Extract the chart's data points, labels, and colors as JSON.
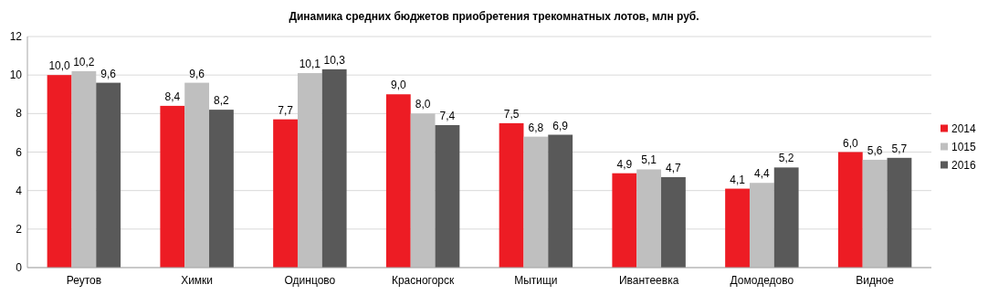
{
  "chart_data": {
    "type": "bar",
    "title": "Динамика средних бюджетов приобретения трекомнатных лотов, млн руб.",
    "categories": [
      "Реутов",
      "Химки",
      "Одинцово",
      "Красногорск",
      "Мытищи",
      "Ивантеевка",
      "Домодедово",
      "Видное"
    ],
    "series": [
      {
        "name": "2014",
        "color": "#ed1c24",
        "values": [
          10.0,
          8.4,
          7.7,
          9.0,
          7.5,
          4.9,
          4.1,
          6.0
        ],
        "value_labels": [
          "10,0",
          "8,4",
          "7,7",
          "9,0",
          "7,5",
          "4,9",
          "4,1",
          "6,0"
        ]
      },
      {
        "name": "1015",
        "color": "#bfbfbf",
        "values": [
          10.2,
          9.6,
          10.1,
          8.0,
          6.8,
          5.1,
          4.4,
          5.6
        ],
        "value_labels": [
          "10,2",
          "9,6",
          "10,1",
          "8,0",
          "6,8",
          "5,1",
          "4,4",
          "5,6"
        ]
      },
      {
        "name": "2016",
        "color": "#595959",
        "values": [
          9.6,
          8.2,
          10.3,
          7.4,
          6.9,
          4.7,
          5.2,
          5.7
        ],
        "value_labels": [
          "9,6",
          "8,2",
          "10,3",
          "7,4",
          "6,9",
          "4,7",
          "5,2",
          "5,7"
        ]
      }
    ],
    "ylim": [
      0,
      12
    ],
    "yticks": [
      0,
      2,
      4,
      6,
      8,
      10,
      12
    ],
    "grid": "y",
    "legend": "right"
  }
}
